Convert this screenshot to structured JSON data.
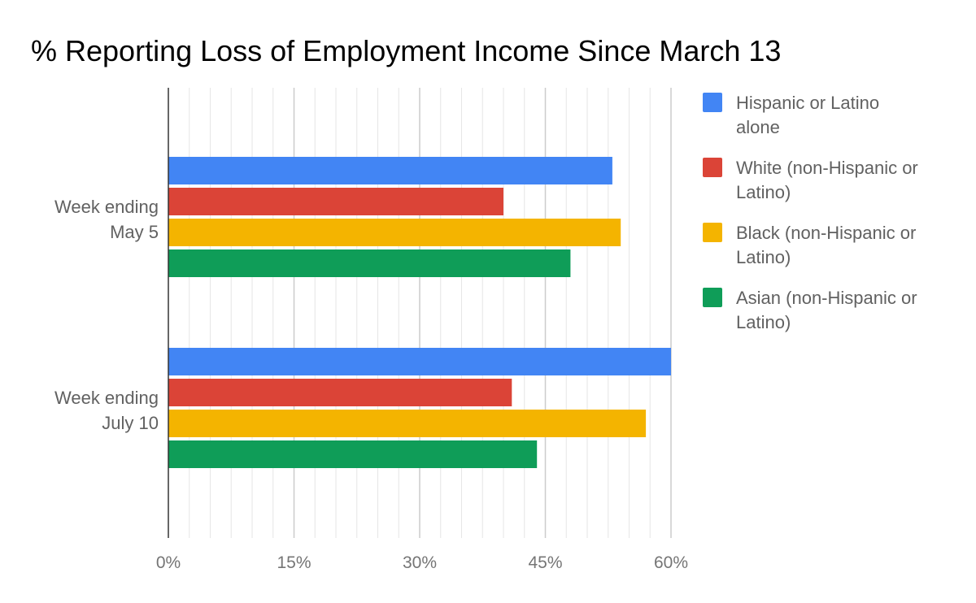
{
  "chart_data": {
    "type": "bar",
    "orientation": "horizontal",
    "title": "% Reporting Loss of Employment Income Since March 13",
    "xlabel": "",
    "ylabel": "",
    "xlim": [
      0,
      60
    ],
    "x_ticks": [
      "0%",
      "15%",
      "30%",
      "45%",
      "60%"
    ],
    "x_tick_values": [
      0,
      15,
      30,
      45,
      60
    ],
    "grid": true,
    "legend_position": "right",
    "categories": [
      [
        "Week ending",
        "May 5"
      ],
      [
        "Week ending",
        "July 10"
      ]
    ],
    "series": [
      {
        "name": [
          "Hispanic or Latino",
          "alone"
        ],
        "color": "#4285F4",
        "values": [
          53,
          60
        ]
      },
      {
        "name": [
          "White (non-Hispanic or",
          "Latino)"
        ],
        "color": "#DB4437",
        "values": [
          40,
          41
        ]
      },
      {
        "name": [
          "Black (non-Hispanic or",
          "Latino)"
        ],
        "color": "#F4B400",
        "values": [
          54,
          57
        ]
      },
      {
        "name": [
          "Asian (non-Hispanic or",
          "Latino)"
        ],
        "color": "#0F9D58",
        "values": [
          48,
          44
        ]
      }
    ]
  }
}
